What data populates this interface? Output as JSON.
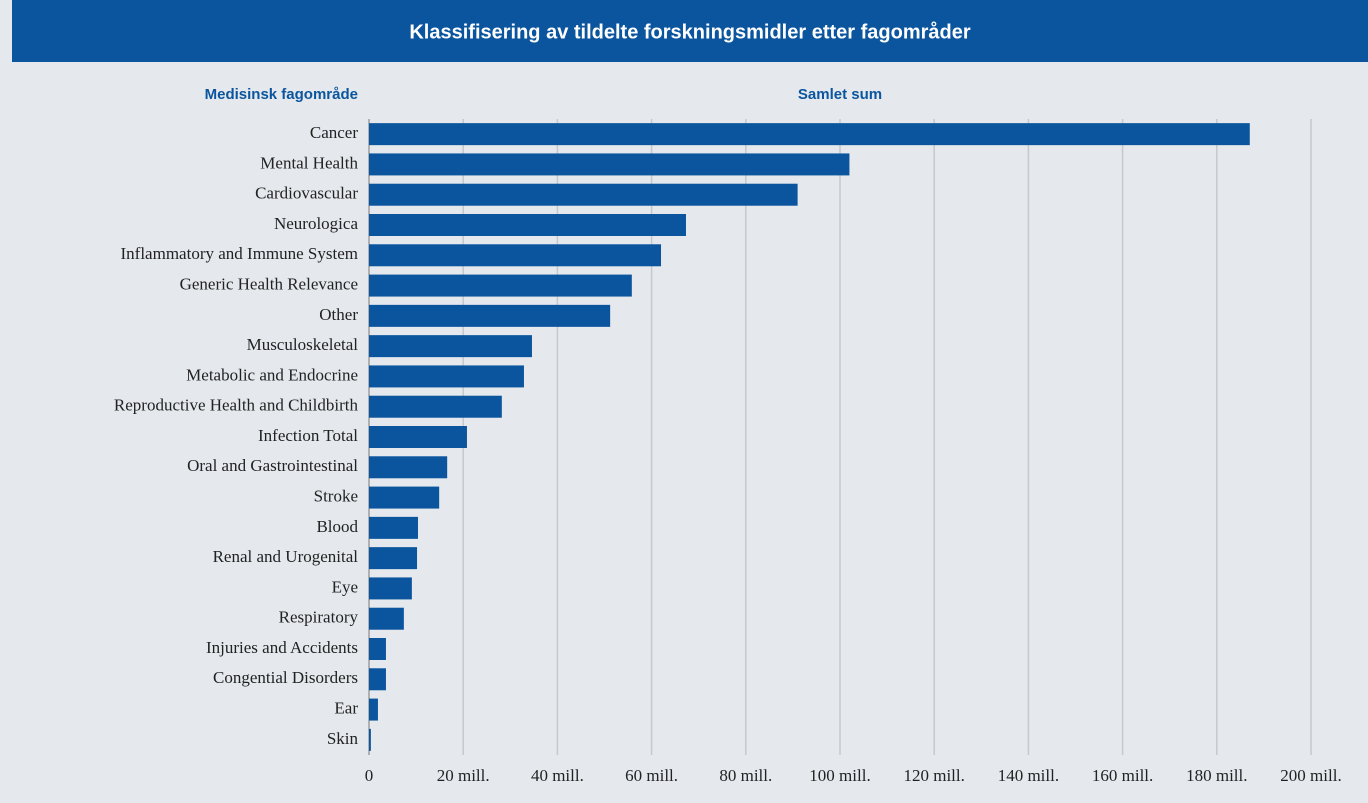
{
  "chart_data": {
    "type": "bar",
    "orientation": "horizontal",
    "title": "Klassifisering av tildelte forskningsmidler etter fagområder",
    "category_header": "Medisinsk fagområde",
    "value_header": "Samlet sum",
    "categories": [
      "Cancer",
      "Mental Health",
      "Cardiovascular",
      "Neurologica",
      "Inflammatory and Immune System",
      "Generic Health Relevance",
      "Other",
      "Musculoskeletal",
      "Metabolic and Endocrine",
      "Reproductive Health and Childbirth",
      "Infection Total",
      "Oral and Gastrointestinal",
      "Stroke",
      "Blood",
      "Renal and Urogenital",
      "Eye",
      "Respiratory",
      "Injuries and Accidents",
      "Congential Disorders",
      "Ear",
      "Skin"
    ],
    "values": [
      187,
      102,
      91,
      67.3,
      62,
      55.8,
      51.2,
      34.6,
      32.9,
      28.2,
      20.8,
      16.6,
      14.9,
      10.4,
      10.2,
      9.1,
      7.4,
      3.6,
      3.6,
      1.9,
      0.4
    ],
    "color": "#0b559e",
    "xlim": [
      0,
      200
    ],
    "xticks": [
      0,
      {
        "value": 20,
        "label": "20 mill."
      },
      {
        "value": 40,
        "label": "40 mill."
      },
      {
        "value": 60,
        "label": "60 mill."
      },
      {
        "value": 80,
        "label": "80 mill."
      },
      {
        "value": 100,
        "label": "100 mill."
      },
      {
        "value": 120,
        "label": "120 mill."
      },
      {
        "value": 140,
        "label": "140 mill."
      },
      {
        "value": 160,
        "label": "160 mill."
      },
      {
        "value": 180,
        "label": "180 mill."
      },
      {
        "value": 200,
        "label": "200 mill."
      }
    ],
    "grid": true
  }
}
